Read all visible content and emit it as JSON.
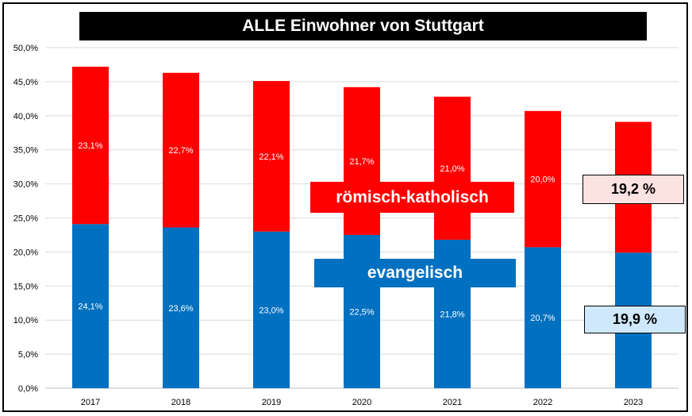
{
  "title": "ALLE Einwohner von Stuttgart",
  "callouts": {
    "roman_catholic_label": "römisch-katholisch",
    "protestant_label": "evangelisch",
    "roman_catholic_2023_value": "19,2 %",
    "protestant_2023_value": "19,9 %"
  },
  "colors": {
    "roman_catholic": "#ff0000",
    "protestant": "#0070c0",
    "gridline": "#d9d9d9",
    "roman_catholic_box": "#fde2e2",
    "protestant_box": "#cfe8fb"
  },
  "chart_data": {
    "type": "bar",
    "stacked": true,
    "title": "ALLE Einwohner von Stuttgart",
    "categories": [
      "2017",
      "2018",
      "2019",
      "2020",
      "2021",
      "2022",
      "2023"
    ],
    "series": [
      {
        "name": "evangelisch",
        "color": "#0070c0",
        "values": [
          24.1,
          23.6,
          23.0,
          22.5,
          21.8,
          20.7,
          19.9
        ],
        "labels": [
          "24,1%",
          "23,6%",
          "23,0%",
          "22,5%",
          "21,8%",
          "20,7%",
          ""
        ]
      },
      {
        "name": "römisch-katholisch",
        "color": "#ff0000",
        "values": [
          23.1,
          22.7,
          22.1,
          21.7,
          21.0,
          20.0,
          19.2
        ],
        "labels": [
          "23,1%",
          "22,7%",
          "22,1%",
          "21,7%",
          "21,0%",
          "20,0%",
          ""
        ]
      }
    ],
    "ylim": [
      0,
      50
    ],
    "yticks": [
      "0,0%",
      "5,0%",
      "10,0%",
      "15,0%",
      "20,0%",
      "25,0%",
      "30,0%",
      "35,0%",
      "40,0%",
      "45,0%",
      "50,0%"
    ],
    "grid": true,
    "legend": "none"
  }
}
